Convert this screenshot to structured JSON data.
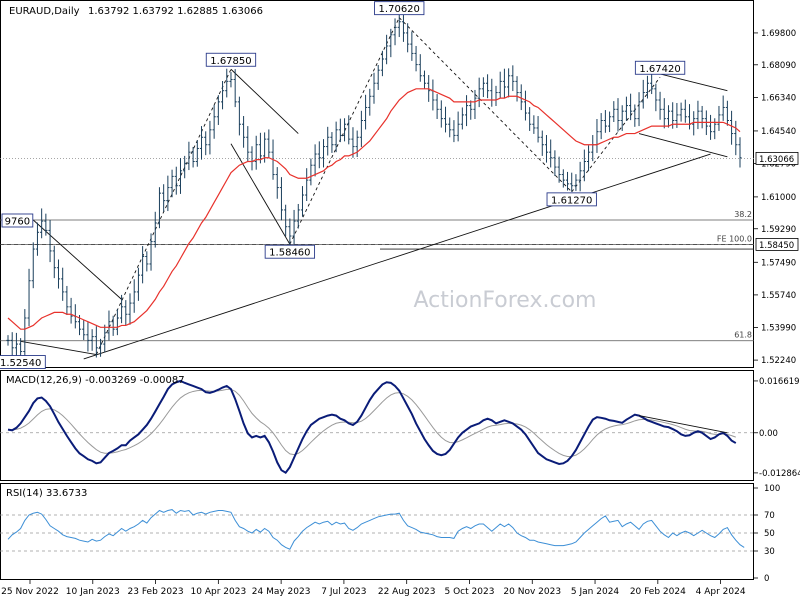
{
  "header": {
    "symbol": "EURAUD,Daily",
    "ohlc": "1.63792 1.63792 1.62885 1.63066"
  },
  "watermark": "ActionForex.com",
  "colors": {
    "bar": "#1a3f5c",
    "ma": "#e8322c",
    "macd": "#0a1c78",
    "signal": "#9a9a9a",
    "rsi": "#3d8fd6",
    "trendline": "#111111",
    "label_border": "#2a3a8a"
  },
  "chart_data": [
    {
      "type": "candlestick",
      "title": "EURAUD,Daily",
      "ylim": [
        1.5187,
        1.7146
      ],
      "x_tick_labels": [
        "25 Nov 2022",
        "10 Jan 2023",
        "23 Feb 2023",
        "10 Apr 2023",
        "24 May 2023",
        "7 Jul 2023",
        "22 Aug 2023",
        "5 Oct 2023",
        "20 Nov 2023",
        "5 Jan 2024",
        "20 Feb 2024",
        "4 Apr 2024"
      ],
      "y_tick_labels": [
        "1.69800",
        "1.68090",
        "1.66340",
        "1.64540",
        "1.62790",
        "1.61000",
        "1.59290",
        "1.57490",
        "1.55740",
        "1.53990",
        "1.52240"
      ],
      "y_tick_values": [
        1.698,
        1.6809,
        1.6634,
        1.6454,
        1.6279,
        1.61,
        1.5929,
        1.5749,
        1.5574,
        1.5399,
        1.5224
      ],
      "current_price": {
        "label": "1.63066",
        "value": 1.63066
      },
      "pivots": [
        {
          "label": "1.52540",
          "value": 1.5254,
          "index": 3
        },
        {
          "label": "1.67850",
          "value": 1.6785,
          "index": 53
        },
        {
          "label": "1.58460",
          "value": 1.5846,
          "index": 67
        },
        {
          "label": "1.70620",
          "value": 1.7062,
          "index": 93
        },
        {
          "label": "1.61270",
          "value": 1.6127,
          "index": 134
        },
        {
          "label": "1.67420",
          "value": 1.6742,
          "index": 155
        }
      ],
      "left_label": {
        "label": "9760",
        "value": 1.5976
      },
      "horizontal_levels": [
        {
          "label": "38.2",
          "value": 1.5976
        },
        {
          "label": "FE 100.0",
          "value": 1.5845
        },
        {
          "label": "61.8",
          "value": 1.5328
        }
      ],
      "level_badge": {
        "label": "1.58450",
        "value": 1.5845
      },
      "close": [
        1.533,
        1.529,
        1.531,
        1.527,
        1.545,
        1.565,
        1.582,
        1.591,
        1.597,
        1.592,
        1.581,
        1.572,
        1.566,
        1.559,
        1.551,
        1.546,
        1.543,
        1.539,
        1.536,
        1.533,
        1.535,
        1.529,
        1.531,
        1.537,
        1.543,
        1.539,
        1.545,
        1.551,
        1.547,
        1.553,
        1.559,
        1.568,
        1.578,
        1.574,
        1.586,
        1.596,
        1.612,
        1.608,
        1.615,
        1.621,
        1.616,
        1.624,
        1.628,
        1.634,
        1.629,
        1.636,
        1.642,
        1.638,
        1.646,
        1.653,
        1.661,
        1.667,
        1.672,
        1.673,
        1.661,
        1.649,
        1.642,
        1.634,
        1.629,
        1.638,
        1.632,
        1.641,
        1.634,
        1.622,
        1.615,
        1.603,
        1.594,
        1.589,
        1.597,
        1.603,
        1.611,
        1.619,
        1.627,
        1.633,
        1.631,
        1.637,
        1.642,
        1.638,
        1.646,
        1.643,
        1.649,
        1.641,
        1.637,
        1.642,
        1.651,
        1.658,
        1.664,
        1.671,
        1.678,
        1.684,
        1.691,
        1.697,
        1.701,
        1.704,
        1.698,
        1.692,
        1.687,
        1.681,
        1.675,
        1.671,
        1.667,
        1.662,
        1.657,
        1.652,
        1.649,
        1.646,
        1.643,
        1.649,
        1.654,
        1.659,
        1.657,
        1.663,
        1.668,
        1.671,
        1.667,
        1.662,
        1.666,
        1.672,
        1.669,
        1.675,
        1.672,
        1.666,
        1.661,
        1.655,
        1.649,
        1.647,
        1.642,
        1.638,
        1.634,
        1.631,
        1.626,
        1.622,
        1.619,
        1.617,
        1.616,
        1.619,
        1.624,
        1.629,
        1.634,
        1.638,
        1.645,
        1.651,
        1.648,
        1.653,
        1.657,
        1.651,
        1.656,
        1.659,
        1.656,
        1.652,
        1.661,
        1.666,
        1.671,
        1.668,
        1.662,
        1.657,
        1.652,
        1.656,
        1.651,
        1.654,
        1.657,
        1.653,
        1.649,
        1.652,
        1.656,
        1.652,
        1.648,
        1.645,
        1.649,
        1.654,
        1.658,
        1.651,
        1.644,
        1.638,
        1.631
      ],
      "ma": [
        1.545,
        1.543,
        1.541,
        1.539,
        1.539,
        1.54,
        1.541,
        1.543,
        1.545,
        1.546,
        1.547,
        1.548,
        1.548,
        1.548,
        1.547,
        1.547,
        1.546,
        1.545,
        1.544,
        1.543,
        1.542,
        1.541,
        1.54,
        1.54,
        1.54,
        1.54,
        1.54,
        1.541,
        1.541,
        1.542,
        1.543,
        1.545,
        1.547,
        1.549,
        1.552,
        1.555,
        1.559,
        1.562,
        1.566,
        1.57,
        1.573,
        1.577,
        1.581,
        1.585,
        1.588,
        1.592,
        1.596,
        1.599,
        1.603,
        1.607,
        1.611,
        1.615,
        1.619,
        1.623,
        1.625,
        1.627,
        1.628,
        1.629,
        1.629,
        1.63,
        1.63,
        1.631,
        1.631,
        1.63,
        1.629,
        1.627,
        1.625,
        1.622,
        1.621,
        1.62,
        1.62,
        1.62,
        1.621,
        1.622,
        1.623,
        1.624,
        1.626,
        1.627,
        1.629,
        1.63,
        1.632,
        1.632,
        1.633,
        1.634,
        1.636,
        1.638,
        1.64,
        1.643,
        1.646,
        1.649,
        1.652,
        1.656,
        1.659,
        1.662,
        1.664,
        1.666,
        1.667,
        1.668,
        1.668,
        1.668,
        1.668,
        1.667,
        1.666,
        1.665,
        1.664,
        1.663,
        1.661,
        1.661,
        1.661,
        1.661,
        1.661,
        1.661,
        1.662,
        1.662,
        1.662,
        1.662,
        1.662,
        1.663,
        1.663,
        1.664,
        1.664,
        1.664,
        1.663,
        1.662,
        1.661,
        1.659,
        1.658,
        1.656,
        1.654,
        1.652,
        1.65,
        1.648,
        1.646,
        1.644,
        1.642,
        1.64,
        1.639,
        1.638,
        1.638,
        1.638,
        1.638,
        1.639,
        1.64,
        1.641,
        1.642,
        1.642,
        1.643,
        1.644,
        1.644,
        1.644,
        1.645,
        1.646,
        1.647,
        1.648,
        1.648,
        1.648,
        1.648,
        1.648,
        1.649,
        1.649,
        1.649,
        1.649,
        1.649,
        1.65,
        1.65,
        1.65,
        1.65,
        1.65,
        1.65,
        1.65,
        1.65,
        1.649,
        1.648,
        1.647,
        1.645
      ]
    },
    {
      "type": "line",
      "title": "MACD(12,26,9) -0.003269 -0.00087",
      "ylim": [
        -0.0145,
        0.0182
      ],
      "y_tick_labels": [
        "0.016619",
        "0.00",
        "-0.012864"
      ],
      "y_tick_values": [
        0.016619,
        0.0,
        -0.012864
      ],
      "macd": [
        0.001,
        0.0008,
        0.0016,
        0.003,
        0.005,
        0.007,
        0.0095,
        0.011,
        0.0113,
        0.0102,
        0.0085,
        0.006,
        0.0034,
        0.0012,
        -0.001,
        -0.003,
        -0.005,
        -0.0066,
        -0.0075,
        -0.0085,
        -0.009,
        -0.0098,
        -0.0095,
        -0.008,
        -0.0065,
        -0.0058,
        -0.005,
        -0.004,
        -0.004,
        -0.0025,
        -0.0015,
        -0.0005,
        0.001,
        0.0025,
        0.0045,
        0.0068,
        0.0092,
        0.0115,
        0.014,
        0.0155,
        0.0162,
        0.0166,
        0.016,
        0.0155,
        0.015,
        0.0145,
        0.014,
        0.013,
        0.0128,
        0.0132,
        0.0138,
        0.0145,
        0.015,
        0.014,
        0.0108,
        0.007,
        0.003,
        -0.0002,
        -0.0015,
        -0.001,
        -0.0015,
        -0.001,
        -0.003,
        -0.006,
        -0.0095,
        -0.012,
        -0.0128,
        -0.011,
        -0.008,
        -0.005,
        -0.002,
        0.0005,
        0.0025,
        0.0035,
        0.0045,
        0.005,
        0.0055,
        0.0058,
        0.0055,
        0.0045,
        0.004,
        0.003,
        0.0025,
        0.0035,
        0.0055,
        0.008,
        0.0105,
        0.0125,
        0.014,
        0.0155,
        0.0162,
        0.016,
        0.015,
        0.0135,
        0.011,
        0.0085,
        0.006,
        0.003,
        0.0005,
        -0.002,
        -0.004,
        -0.0058,
        -0.0068,
        -0.0072,
        -0.0068,
        -0.0055,
        -0.0035,
        -0.0015,
        0.0,
        0.001,
        0.002,
        0.0025,
        0.003,
        0.004,
        0.0045,
        0.004,
        0.003,
        0.0035,
        0.004,
        0.0035,
        0.003,
        0.002,
        0.001,
        -0.0005,
        -0.0025,
        -0.0045,
        -0.0065,
        -0.0075,
        -0.0085,
        -0.009,
        -0.0095,
        -0.01,
        -0.0098,
        -0.009,
        -0.0075,
        -0.0055,
        -0.003,
        -0.0005,
        0.002,
        0.0042,
        0.005,
        0.0048,
        0.0045,
        0.004,
        0.0038,
        0.0035,
        0.0032,
        0.0042,
        0.005,
        0.0058,
        0.0055,
        0.0048,
        0.004,
        0.0035,
        0.003,
        0.0025,
        0.002,
        0.0018,
        0.0012,
        0.0005,
        -0.0005,
        -0.001,
        -0.0008,
        0.0,
        0.0005,
        0.0,
        -0.001,
        -0.002,
        -0.0015,
        -0.0005,
        0.0,
        -0.001,
        -0.0025,
        -0.0033
      ]
    },
    {
      "type": "line",
      "title": "RSI(14) 33.6733",
      "ylim": [
        0,
        100
      ],
      "y_tick_labels": [
        "100",
        "70",
        "50",
        "30",
        "0"
      ],
      "y_tick_values": [
        100,
        70,
        50,
        30,
        0
      ],
      "rsi": [
        43,
        48,
        51,
        55,
        64,
        70,
        72,
        73,
        71,
        65,
        58,
        55,
        52,
        48,
        46,
        45,
        44,
        42,
        41,
        40,
        43,
        41,
        42,
        46,
        49,
        47,
        51,
        55,
        52,
        55,
        57,
        60,
        64,
        61,
        67,
        71,
        75,
        73,
        75,
        76,
        72,
        75,
        74,
        75,
        70,
        72,
        73,
        71,
        73,
        74,
        75,
        75,
        74,
        73,
        64,
        57,
        55,
        52,
        50,
        54,
        51,
        55,
        52,
        45,
        42,
        37,
        34,
        32,
        41,
        46,
        52,
        56,
        59,
        62,
        60,
        62,
        63,
        59,
        62,
        60,
        61,
        55,
        53,
        56,
        60,
        62,
        64,
        66,
        68,
        69,
        70,
        71,
        71,
        72,
        64,
        58,
        56,
        54,
        51,
        50,
        49,
        48,
        46,
        45,
        45,
        45,
        44,
        52,
        55,
        57,
        55,
        58,
        60,
        60,
        56,
        52,
        56,
        60,
        57,
        60,
        56,
        50,
        47,
        45,
        42,
        42,
        40,
        39,
        38,
        37,
        36,
        36,
        36,
        37,
        38,
        40,
        45,
        50,
        54,
        58,
        62,
        66,
        69,
        62,
        63,
        64,
        57,
        60,
        62,
        58,
        54,
        60,
        63,
        64,
        58,
        52,
        48,
        45,
        50,
        47,
        50,
        52,
        50,
        47,
        50,
        53,
        50,
        47,
        45,
        49,
        54,
        56,
        48,
        42,
        37,
        34
      ]
    }
  ]
}
